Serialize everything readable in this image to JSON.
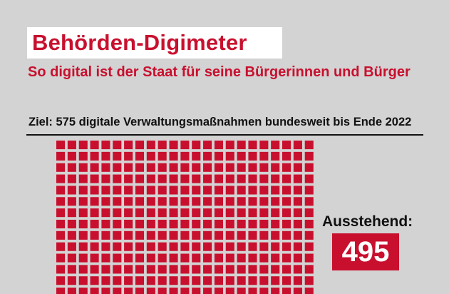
{
  "title": "Behörden-Digimeter",
  "subtitle": "So digital ist der Staat für seine Bürgerinnen und Bürger",
  "goal_text": "Ziel: 575 digitale Verwaltungsmaßnahmen bundesweit bis Ende 2022",
  "colors": {
    "accent": "#c8102e",
    "background": "#d3d3d3",
    "text": "#111111"
  },
  "chart_data": {
    "type": "waffle",
    "total": 575,
    "series": [
      {
        "name": "Ausstehend",
        "value": 495
      }
    ]
  },
  "pending": {
    "label": "Ausstehend:",
    "value": "495"
  }
}
